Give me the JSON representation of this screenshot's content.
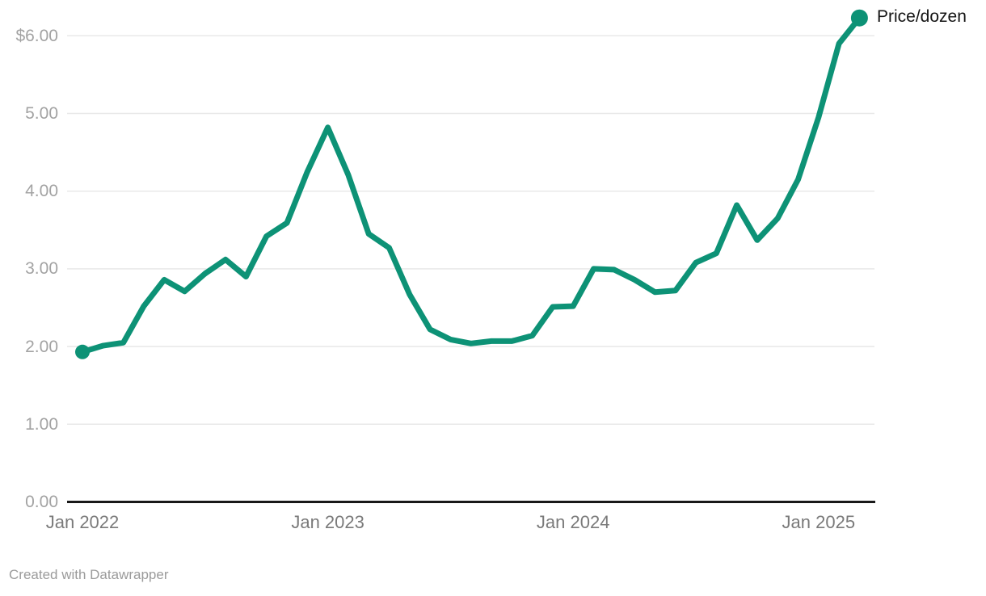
{
  "chart_data": {
    "type": "line",
    "title": "",
    "series_name": "Price/dozen",
    "x": [
      "Jan 2022",
      "Feb 2022",
      "Mar 2022",
      "Apr 2022",
      "May 2022",
      "Jun 2022",
      "Jul 2022",
      "Aug 2022",
      "Sep 2022",
      "Oct 2022",
      "Nov 2022",
      "Dec 2022",
      "Jan 2023",
      "Feb 2023",
      "Mar 2023",
      "Apr 2023",
      "May 2023",
      "Jun 2023",
      "Jul 2023",
      "Aug 2023",
      "Sep 2023",
      "Oct 2023",
      "Nov 2023",
      "Dec 2023",
      "Jan 2024",
      "Feb 2024",
      "Mar 2024",
      "Apr 2024",
      "May 2024",
      "Jun 2024",
      "Jul 2024",
      "Aug 2024",
      "Sep 2024",
      "Oct 2024",
      "Nov 2024",
      "Dec 2024",
      "Jan 2025",
      "Feb 2025",
      "Mar 2025"
    ],
    "values": [
      1.93,
      2.01,
      2.05,
      2.52,
      2.86,
      2.71,
      2.94,
      3.12,
      2.9,
      3.42,
      3.59,
      4.25,
      4.82,
      4.21,
      3.45,
      3.27,
      2.67,
      2.22,
      2.09,
      2.04,
      2.07,
      2.07,
      2.14,
      2.51,
      2.52,
      3.0,
      2.99,
      2.86,
      2.7,
      2.72,
      3.08,
      3.2,
      3.82,
      3.37,
      3.65,
      4.15,
      4.95,
      5.9,
      6.23
    ],
    "xlabel": "",
    "ylabel": "",
    "ylim": [
      0,
      6.5
    ],
    "grid": "horizontal",
    "legend_position": "top-right-end-of-line",
    "x_ticks": [
      {
        "label": "Jan 2022",
        "month_index": 0
      },
      {
        "label": "Jan 2023",
        "month_index": 12
      },
      {
        "label": "Jan 2024",
        "month_index": 24
      },
      {
        "label": "Jan 2025",
        "month_index": 36
      }
    ],
    "y_ticks": [
      {
        "label": "$6.00",
        "value": 6
      },
      {
        "label": "5.00",
        "value": 5
      },
      {
        "label": "4.00",
        "value": 4
      },
      {
        "label": "3.00",
        "value": 3
      },
      {
        "label": "2.00",
        "value": 2
      },
      {
        "label": "1.00",
        "value": 1
      },
      {
        "label": "0.00",
        "value": 0
      }
    ]
  },
  "footer": {
    "attribution": "Created with Datawrapper"
  },
  "colors": {
    "line": "#0d9276",
    "marker": "#0d9276",
    "grid": "#e8e8e8",
    "axis": "#191919",
    "y_tick_text": "#a3a3a3",
    "x_tick_text": "#7a7a7a",
    "legend_text": "#141414",
    "footer_text": "#9b9b9b",
    "background": "#ffffff"
  }
}
